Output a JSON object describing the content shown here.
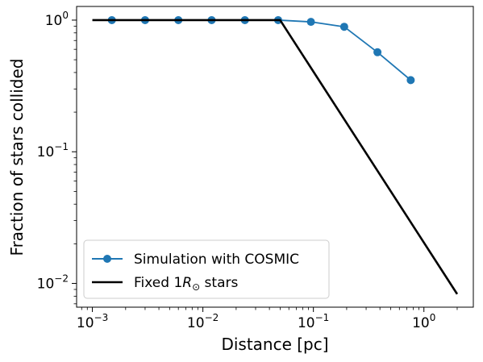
{
  "chart_data": {
    "type": "line",
    "title": "",
    "xlabel": "Distance [pc]",
    "ylabel": "Fraction of stars collided",
    "xscale": "log",
    "yscale": "log",
    "xlim": [
      0.00072,
      2.8
    ],
    "ylim": [
      0.0066,
      1.27
    ],
    "x_ticks": [
      {
        "value": 0.001,
        "base": "10",
        "exp": "−3"
      },
      {
        "value": 0.01,
        "base": "10",
        "exp": "−2"
      },
      {
        "value": 0.1,
        "base": "10",
        "exp": "−1"
      },
      {
        "value": 1,
        "base": "10",
        "exp": "0"
      }
    ],
    "y_ticks": [
      {
        "value": 0.01,
        "base": "10",
        "exp": "−2"
      },
      {
        "value": 0.1,
        "base": "10",
        "exp": "−1"
      },
      {
        "value": 1,
        "base": "10",
        "exp": "0"
      }
    ],
    "grid": false,
    "legend_position": "lower-left",
    "series": [
      {
        "name": "Simulation with COSMIC",
        "color": "#1f77b4",
        "marker": "circle",
        "x": [
          0.0015,
          0.003,
          0.006,
          0.012,
          0.024,
          0.048,
          0.095,
          0.19,
          0.38,
          0.76
        ],
        "y": [
          1.0,
          1.0,
          1.0,
          1.0,
          1.0,
          1.0,
          0.97,
          0.89,
          0.57,
          0.35
        ]
      },
      {
        "name": "Fixed 1R⊙ stars",
        "name_parts": {
          "prefix": "Fixed 1",
          "symbol": "R",
          "subscript": "⊙",
          "suffix": " stars"
        },
        "color": "#000000",
        "marker": "none",
        "x": [
          0.001,
          0.05,
          2.0
        ],
        "y": [
          1.0,
          1.0,
          0.0083
        ]
      }
    ]
  }
}
